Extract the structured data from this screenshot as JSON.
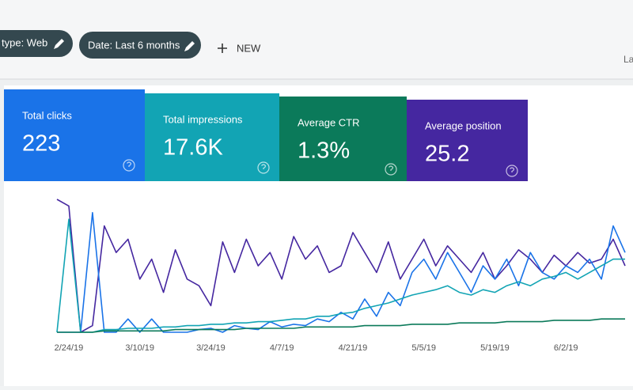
{
  "toolbar": {
    "filters": [
      "type: Web",
      "Date: Last 6 months"
    ],
    "new_button": "NEW",
    "right_text": "La"
  },
  "metrics": [
    {
      "label": "Total clicks",
      "value": "223",
      "color": "#1a73e8"
    },
    {
      "label": "Total impressions",
      "value": "17.6K",
      "color": "#12a4b4"
    },
    {
      "label": "Average CTR",
      "value": "1.3%",
      "color": "#0b7a5a"
    },
    {
      "label": "Average position",
      "value": "25.2",
      "color": "#4527a0"
    }
  ],
  "chart_data": {
    "type": "line",
    "categories": [
      null,
      "2/24/19",
      null,
      null,
      null,
      null,
      null,
      "3/10/19",
      null,
      null,
      null,
      null,
      null,
      "3/24/19",
      null,
      null,
      null,
      null,
      null,
      "4/7/19",
      null,
      null,
      null,
      null,
      null,
      "4/21/19",
      null,
      null,
      null,
      null,
      null,
      "5/5/19",
      null,
      null,
      null,
      null,
      null,
      "5/19/19",
      null,
      null,
      null,
      null,
      null,
      "6/2/19",
      null,
      null,
      null,
      null,
      null
    ],
    "ylim": [
      0,
      100
    ],
    "series": [
      {
        "color": "#4527a0",
        "values": [
          100,
          95,
          0,
          5,
          80,
          60,
          70,
          40,
          55,
          30,
          62,
          40,
          35,
          20,
          68,
          45,
          70,
          50,
          60,
          40,
          72,
          55,
          65,
          45,
          50,
          75,
          60,
          45,
          68,
          40,
          55,
          70,
          50,
          65,
          55,
          45,
          60,
          40,
          50,
          62,
          55,
          45,
          58,
          50,
          60,
          52,
          55,
          70,
          50
        ]
      },
      {
        "color": "#1a73e8",
        "values": [
          0,
          0,
          0,
          90,
          0,
          0,
          10,
          0,
          10,
          0,
          0,
          0,
          2,
          3,
          0,
          5,
          3,
          2,
          8,
          4,
          6,
          5,
          10,
          8,
          15,
          10,
          25,
          12,
          30,
          20,
          45,
          55,
          40,
          60,
          45,
          30,
          50,
          40,
          55,
          35,
          60,
          45,
          40,
          50,
          45,
          55,
          40,
          80,
          60
        ]
      },
      {
        "color": "#12a4b4",
        "values": [
          0,
          85,
          0,
          0,
          2,
          2,
          3,
          3,
          3,
          4,
          4,
          5,
          5,
          6,
          6,
          7,
          7,
          8,
          8,
          9,
          10,
          10,
          12,
          12,
          14,
          15,
          18,
          20,
          22,
          25,
          28,
          30,
          32,
          35,
          30,
          28,
          32,
          30,
          35,
          38,
          35,
          40,
          42,
          45,
          40,
          45,
          50,
          55,
          55
        ]
      },
      {
        "color": "#0b7a5a",
        "values": [
          0,
          0,
          0,
          0,
          1,
          1,
          1,
          1,
          1,
          1,
          2,
          2,
          2,
          2,
          2,
          2,
          3,
          3,
          3,
          3,
          3,
          4,
          4,
          4,
          4,
          4,
          5,
          5,
          5,
          5,
          6,
          6,
          6,
          6,
          7,
          7,
          7,
          7,
          8,
          8,
          8,
          8,
          9,
          9,
          9,
          9,
          10,
          10,
          10
        ]
      }
    ]
  }
}
